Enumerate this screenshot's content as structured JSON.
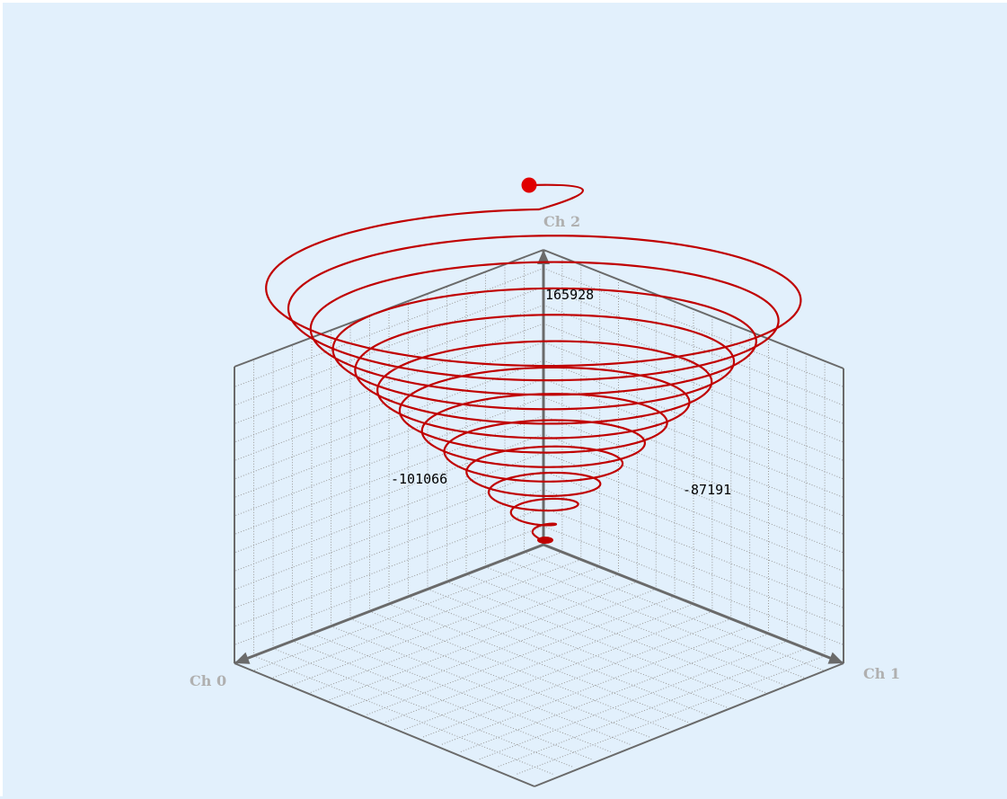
{
  "chart_data": {
    "type": "line3d",
    "title": "",
    "axes": {
      "x": {
        "name": "Ch 0",
        "value_label": "-101066"
      },
      "y": {
        "name": "Ch 1",
        "value_label": "-87191"
      },
      "z": {
        "name": "Ch 2",
        "value_label": "165928"
      }
    },
    "grid": true,
    "series": [
      {
        "shape": "conical-spiral",
        "turns": 12.5,
        "end_marker": "dot"
      }
    ],
    "colors": {
      "series": "#c00000",
      "axes": "#6a6a6a",
      "grid": "#9a9a9a",
      "axis_name": "#b0b0b0",
      "background": "#e2f0fc"
    }
  }
}
